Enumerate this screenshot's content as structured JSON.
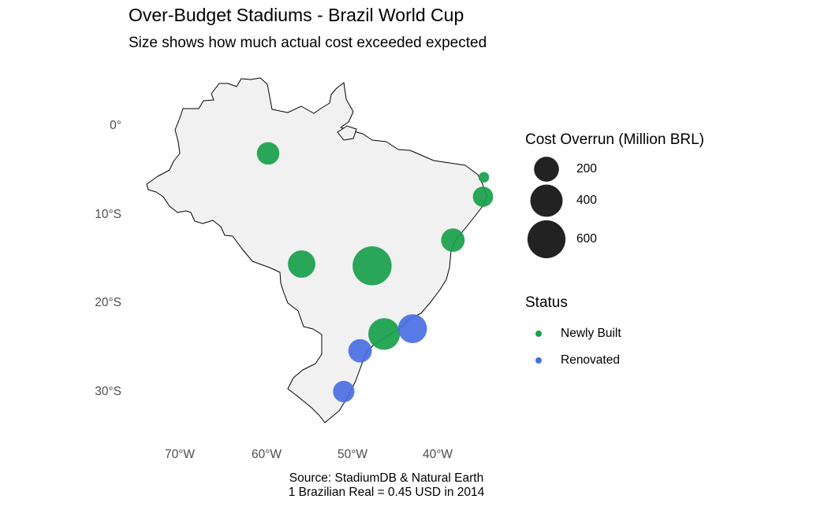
{
  "title": "Over-Budget Stadiums - Brazil World Cup",
  "subtitle": "Size shows how much actual cost exceeded expected",
  "caption": {
    "line1": "Source: StadiumDB & Natural Earth",
    "line2": "1 Brazilian Real = 0.45 USD in 2014"
  },
  "axes": {
    "y_ticks": [
      "0°",
      "10°S",
      "20°S",
      "30°S"
    ],
    "x_ticks": [
      "70°W",
      "60°W",
      "50°W",
      "40°W"
    ]
  },
  "legend_size": {
    "title": "Cost Overrun (Million BRL)",
    "items": [
      {
        "label": "200",
        "value": 200
      },
      {
        "label": "400",
        "value": 400
      },
      {
        "label": "600",
        "value": 600
      }
    ]
  },
  "legend_status": {
    "title": "Status",
    "items": [
      {
        "label": "Newly Built",
        "color": "#18a04a"
      },
      {
        "label": "Renovated",
        "color": "#4a6fe3"
      }
    ]
  },
  "chart_data": {
    "type": "scatter",
    "map": "Brazil",
    "x_axis": "longitude",
    "y_axis": "latitude",
    "points": [
      {
        "lon": -60.0,
        "lat": -3.1,
        "overrun": 150,
        "status": "Newly Built"
      },
      {
        "lon": -34.9,
        "lat": -5.8,
        "overrun": 8,
        "status": "Newly Built"
      },
      {
        "lon": -35.0,
        "lat": -8.0,
        "overrun": 110,
        "status": "Newly Built"
      },
      {
        "lon": -38.5,
        "lat": -12.9,
        "overrun": 170,
        "status": "Newly Built"
      },
      {
        "lon": -56.1,
        "lat": -15.6,
        "overrun": 260,
        "status": "Newly Built"
      },
      {
        "lon": -47.9,
        "lat": -15.8,
        "overrun": 640,
        "status": "Newly Built"
      },
      {
        "lon": -46.5,
        "lat": -23.5,
        "overrun": 380,
        "status": "Newly Built"
      },
      {
        "lon": -43.2,
        "lat": -22.9,
        "overrun": 300,
        "status": "Renovated"
      },
      {
        "lon": -49.3,
        "lat": -25.4,
        "overrun": 170,
        "status": "Renovated"
      },
      {
        "lon": -51.2,
        "lat": -30.0,
        "overrun": 130,
        "status": "Renovated"
      }
    ]
  }
}
